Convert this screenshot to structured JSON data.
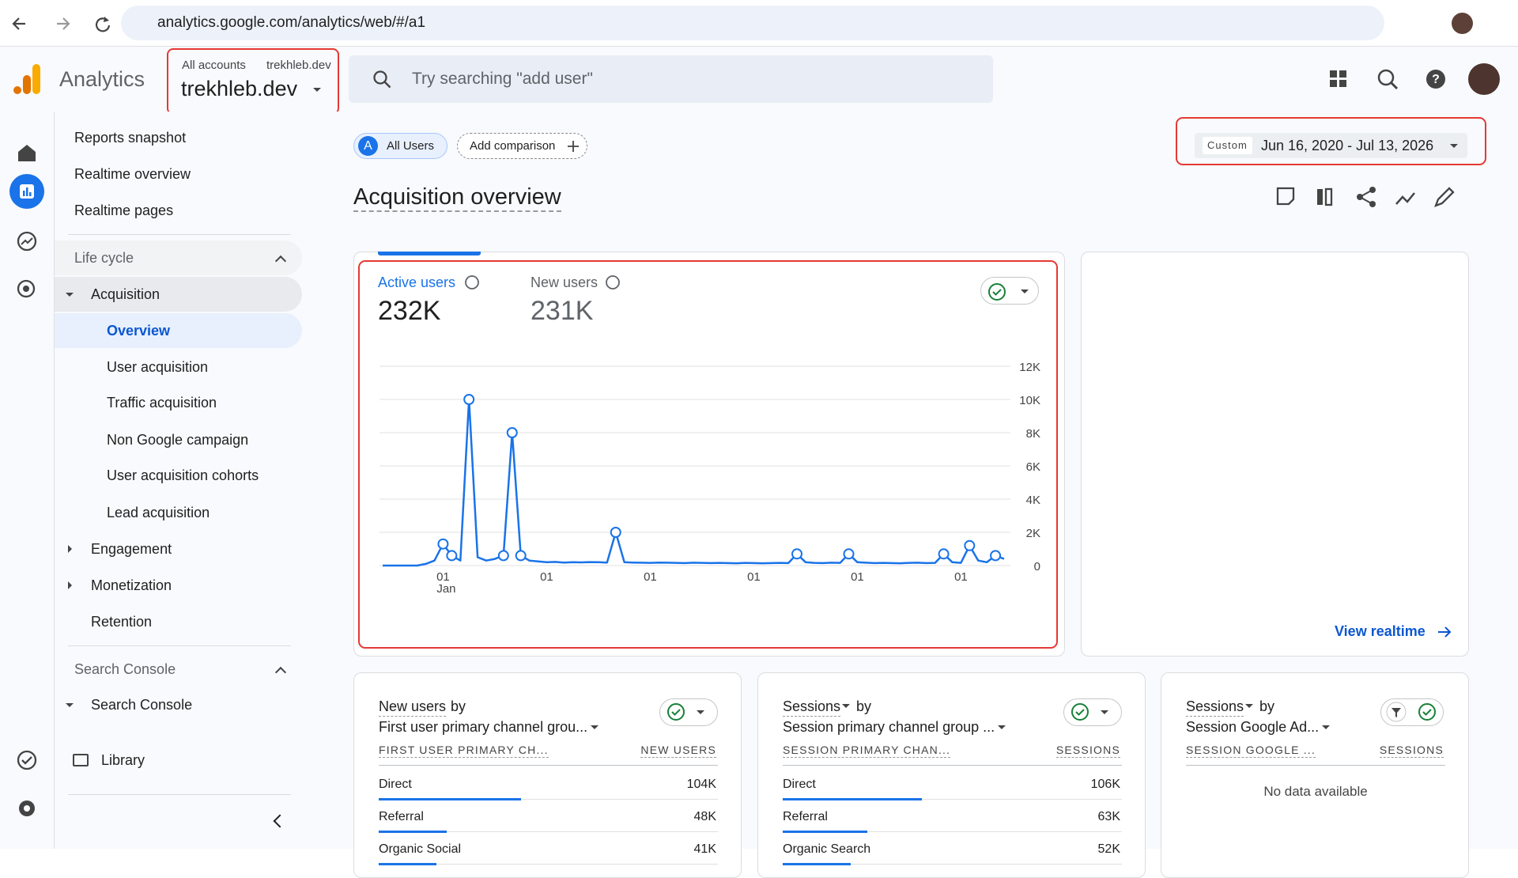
{
  "browser": {
    "url": "analytics.google.com/analytics/web/#/a1"
  },
  "header": {
    "app_name": "Analytics",
    "breadcrumb": [
      "All accounts",
      "trekhleb.dev"
    ],
    "property": "trekhleb.dev",
    "search_placeholder": "Try searching \"add user\""
  },
  "nav": {
    "top_items": [
      "Reports snapshot",
      "Realtime overview",
      "Realtime pages"
    ],
    "lifecycle": {
      "title": "Life cycle",
      "acquisition": "Acquisition",
      "acquisition_items": [
        "Overview",
        "User acquisition",
        "Traffic acquisition",
        "Non Google campaign",
        "User acquisition cohorts",
        "Lead acquisition"
      ],
      "other_items": [
        "Engagement",
        "Monetization",
        "Retention"
      ]
    },
    "search_console": {
      "title": "Search Console",
      "item": "Search Console"
    },
    "library": "Library"
  },
  "toolbar": {
    "segment_badge": "A",
    "segment": "All Users",
    "add_comparison": "Add comparison",
    "date_mode": "Custom",
    "date_range": "Jun 16, 2020 - Jul 13, 2026"
  },
  "page_title": "Acquisition overview",
  "metrics": [
    {
      "label": "Active users",
      "value": "232K"
    },
    {
      "label": "New users",
      "value": "231K"
    }
  ],
  "chart_data": {
    "type": "line",
    "color": "#1a73e8",
    "categories": [
      null,
      null,
      null,
      null,
      null,
      null,
      null,
      "01",
      null,
      null,
      null,
      null,
      null,
      null,
      null,
      null,
      null,
      null,
      null,
      "01",
      null,
      null,
      null,
      null,
      null,
      null,
      null,
      null,
      null,
      null,
      null,
      "01",
      null,
      null,
      null,
      null,
      null,
      null,
      null,
      null,
      null,
      null,
      null,
      "01",
      null,
      null,
      null,
      null,
      null,
      null,
      null,
      null,
      null,
      null,
      null,
      "01",
      null,
      null,
      null,
      null,
      null,
      null,
      null,
      null,
      null,
      null,
      null,
      "01",
      null,
      null,
      null,
      null,
      null
    ],
    "x_sublabel": "Jan",
    "values": [
      0,
      0,
      0,
      0,
      0,
      100,
      300,
      1300,
      600,
      300,
      10000,
      500,
      300,
      400,
      600,
      8000,
      600,
      300,
      250,
      200,
      220,
      180,
      200,
      190,
      210,
      200,
      180,
      2000,
      200,
      180,
      170,
      160,
      180,
      170,
      160,
      150,
      170,
      160,
      150,
      160,
      150,
      140,
      160,
      150,
      140,
      150,
      160,
      150,
      700,
      200,
      160,
      150,
      170,
      160,
      700,
      200,
      170,
      150,
      160,
      150,
      140,
      160,
      170,
      150,
      160,
      700,
      200,
      160,
      1200,
      300,
      200,
      600,
      400
    ],
    "ylim": [
      0,
      12000
    ],
    "yticks": [
      0,
      {
        "value": 2000,
        "label": "2K"
      },
      {
        "value": 4000,
        "label": "4K"
      },
      {
        "value": 6000,
        "label": "6K"
      },
      {
        "value": 8000,
        "label": "8K"
      },
      {
        "value": 10000,
        "label": "10K"
      },
      {
        "value": 12000,
        "label": "12K"
      }
    ],
    "grid": true
  },
  "realtime_card": {
    "link": "View realtime"
  },
  "cards": [
    {
      "title_metric": "New users",
      "title_suffix": "by",
      "dimension": "First user primary channel grou...",
      "headers": [
        "FIRST USER PRIMARY CH...",
        "NEW USERS"
      ],
      "rows": [
        [
          "Direct",
          "104K"
        ],
        [
          "Referral",
          "48K"
        ],
        [
          "Organic Social",
          "41K"
        ]
      ]
    },
    {
      "title_metric": "Sessions",
      "title_suffix": "by",
      "dimension": "Session primary channel group ...",
      "headers": [
        "SESSION PRIMARY CHAN...",
        "SESSIONS"
      ],
      "rows": [
        [
          "Direct",
          "106K"
        ],
        [
          "Referral",
          "63K"
        ],
        [
          "Organic Search",
          "52K"
        ]
      ]
    },
    {
      "title_metric": "Sessions",
      "title_suffix": "by",
      "dimension": "Session Google Ad...",
      "headers": [
        "SESSION GOOGLE ...",
        "SESSIONS"
      ],
      "empty": "No data available"
    }
  ]
}
